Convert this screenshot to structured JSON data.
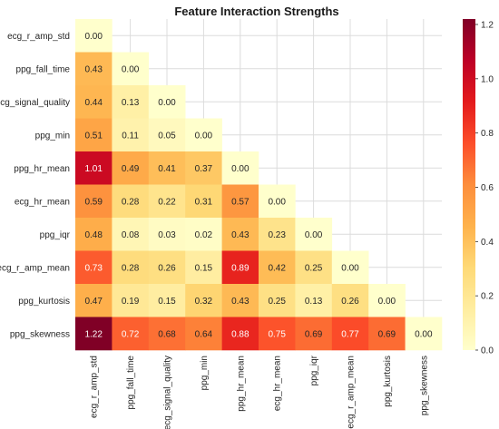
{
  "chart_data": {
    "type": "heatmap",
    "title": "Feature Interaction Strengths",
    "rows": [
      "ecg_r_amp_std",
      "ppg_fall_time",
      "ecg_signal_quality",
      "ppg_min",
      "ppg_hr_mean",
      "ecg_hr_mean",
      "ppg_iqr",
      "ecg_r_amp_mean",
      "ppg_kurtosis",
      "ppg_skewness"
    ],
    "columns": [
      "ecg_r_amp_std",
      "ppg_fall_time",
      "ecg_signal_quality",
      "ppg_min",
      "ppg_hr_mean",
      "ecg_hr_mean",
      "ppg_iqr",
      "ecg_r_amp_mean",
      "ppg_kurtosis",
      "ppg_skewness"
    ],
    "values": [
      [
        0.0
      ],
      [
        0.43,
        0.0
      ],
      [
        0.44,
        0.13,
        0.0
      ],
      [
        0.51,
        0.11,
        0.05,
        0.0
      ],
      [
        1.01,
        0.49,
        0.41,
        0.37,
        0.0
      ],
      [
        0.59,
        0.28,
        0.22,
        0.31,
        0.57,
        0.0
      ],
      [
        0.48,
        0.08,
        0.03,
        0.02,
        0.43,
        0.23,
        0.0
      ],
      [
        0.73,
        0.28,
        0.26,
        0.15,
        0.89,
        0.42,
        0.25,
        0.0
      ],
      [
        0.47,
        0.19,
        0.15,
        0.32,
        0.43,
        0.25,
        0.13,
        0.26,
        0.0
      ],
      [
        1.22,
        0.72,
        0.68,
        0.64,
        0.88,
        0.75,
        0.69,
        0.77,
        0.69,
        0.0
      ]
    ],
    "mask": "upper-triangle",
    "colormap": "YlOrRd",
    "vmin": 0.0,
    "vmax": 1.22,
    "colorbar_ticks": [
      "0.0",
      "0.2",
      "0.4",
      "0.6",
      "0.8",
      "1.0",
      "1.2"
    ],
    "grid": true
  }
}
